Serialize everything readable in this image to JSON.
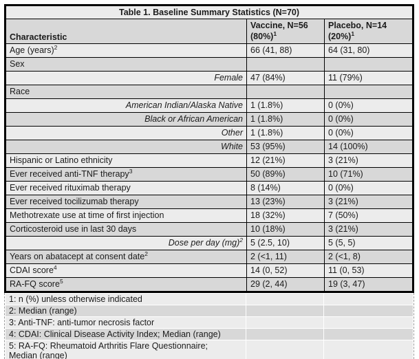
{
  "colors": {
    "band_light": "#ececec",
    "band_dark": "#d8d8d8",
    "main_border": "#000000",
    "footnote_border": "#9a9a9a",
    "text": "#1a1a1a",
    "page_background": "#ffffff"
  },
  "table": {
    "title": "Table 1. Baseline Summary Statistics (N=70)",
    "columns": [
      {
        "line1": "Characteristic",
        "line2": "",
        "sup": ""
      },
      {
        "line1": "Vaccine, N=56",
        "line2": "(80%)",
        "sup": "1"
      },
      {
        "line1": "Placebo, N=14",
        "line2": "(20%)",
        "sup": "1"
      }
    ],
    "rows": [
      {
        "label": "Age (years)",
        "sup": "2",
        "sub": false,
        "vaccine": "66 (41, 88)",
        "placebo": "64 (31, 80)"
      },
      {
        "label": "Sex",
        "sup": "",
        "sub": false,
        "vaccine": "",
        "placebo": ""
      },
      {
        "label": "Female",
        "sup": "",
        "sub": true,
        "vaccine": "47 (84%)",
        "placebo": "11 (79%)"
      },
      {
        "label": "Race",
        "sup": "",
        "sub": false,
        "vaccine": "",
        "placebo": ""
      },
      {
        "label": "American Indian/Alaska Native",
        "sup": "",
        "sub": true,
        "vaccine": "1 (1.8%)",
        "placebo": "0 (0%)"
      },
      {
        "label": "Black or African American",
        "sup": "",
        "sub": true,
        "vaccine": "1 (1.8%)",
        "placebo": "0 (0%)"
      },
      {
        "label": "Other",
        "sup": "",
        "sub": true,
        "vaccine": "1 (1.8%)",
        "placebo": "0 (0%)"
      },
      {
        "label": "White",
        "sup": "",
        "sub": true,
        "vaccine": "53 (95%)",
        "placebo": "14 (100%)"
      },
      {
        "label": "Hispanic or Latino ethnicity",
        "sup": "",
        "sub": false,
        "vaccine": "12 (21%)",
        "placebo": "3 (21%)"
      },
      {
        "label": "Ever received anti-TNF therapy",
        "sup": "3",
        "sub": false,
        "vaccine": "50 (89%)",
        "placebo": "10 (71%)"
      },
      {
        "label": "Ever received rituximab therapy",
        "sup": "",
        "sub": false,
        "vaccine": "8 (14%)",
        "placebo": "0 (0%)"
      },
      {
        "label": "Ever received tocilizumab therapy",
        "sup": "",
        "sub": false,
        "vaccine": "13 (23%)",
        "placebo": "3 (21%)"
      },
      {
        "label": "Methotrexate use at time of first injection",
        "sup": "",
        "sub": false,
        "vaccine": "18 (32%)",
        "placebo": "7 (50%)"
      },
      {
        "label": "Corticosteroid use in last 30 days",
        "sup": "",
        "sub": false,
        "vaccine": "10 (18%)",
        "placebo": "3 (21%)"
      },
      {
        "label": "Dose per day (mg)",
        "sup": "2",
        "sub": true,
        "vaccine": "5 (2.5, 10)",
        "placebo": "5 (5, 5)"
      },
      {
        "label": "Years on abatacept at consent date",
        "sup": "2",
        "sub": false,
        "vaccine": "2 (<1, 11)",
        "placebo": "2 (<1, 8)"
      },
      {
        "label": "CDAI score",
        "sup": "4",
        "sub": false,
        "vaccine": "14 (0, 52)",
        "placebo": "11 (0, 53)"
      },
      {
        "label": "RA-FQ score",
        "sup": "5",
        "sub": false,
        "vaccine": "29 (2, 44)",
        "placebo": "19 (3, 47)"
      }
    ],
    "footnotes": [
      {
        "lines": [
          "1: n (%) unless otherwise indicated"
        ]
      },
      {
        "lines": [
          "2: Median (range)"
        ]
      },
      {
        "lines": [
          "3: Anti-TNF: anti-tumor necrosis factor"
        ]
      },
      {
        "lines": [
          "4: CDAI: Clinical Disease Activity Index; Median (range)"
        ]
      },
      {
        "lines": [
          "5: RA-FQ: Rheumatoid Arthritis Flare Questionnaire;",
          "Median (range)"
        ]
      }
    ]
  }
}
